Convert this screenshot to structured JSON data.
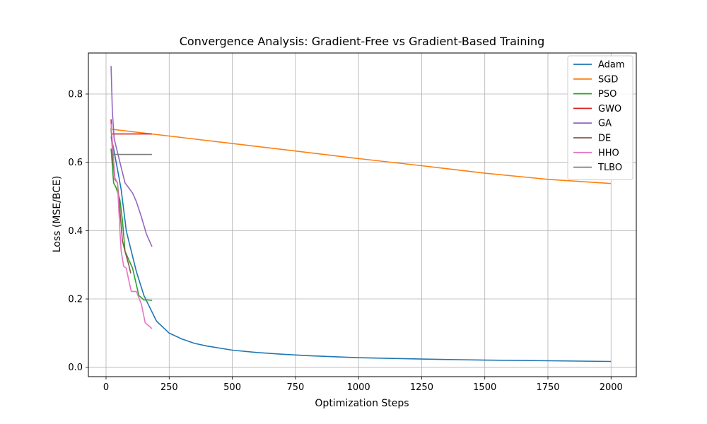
{
  "chart_data": {
    "type": "line",
    "title": "Convergence Analysis: Gradient-Free vs Gradient-Based Training",
    "xlabel": "Optimization Steps",
    "ylabel": "Loss (MSE/BCE)",
    "xlim": [
      -70,
      2100
    ],
    "ylim": [
      -0.0275,
      0.92
    ],
    "xticks": [
      0,
      250,
      500,
      750,
      1000,
      1250,
      1500,
      1750,
      2000
    ],
    "yticks": [
      0.0,
      0.2,
      0.4,
      0.6,
      0.8
    ],
    "xtick_labels": [
      "0",
      "250",
      "500",
      "750",
      "1000",
      "1250",
      "1500",
      "1750",
      "2000"
    ],
    "ytick_labels": [
      "0.0",
      "0.2",
      "0.4",
      "0.6",
      "0.8"
    ],
    "grid": true,
    "legend_position": "top-right",
    "series": [
      {
        "name": "Adam",
        "color": "#1f77b4",
        "points": [
          [
            20,
            0.675
          ],
          [
            30,
            0.64
          ],
          [
            40,
            0.6
          ],
          [
            50,
            0.56
          ],
          [
            60,
            0.52
          ],
          [
            70,
            0.46
          ],
          [
            80,
            0.4
          ],
          [
            100,
            0.34
          ],
          [
            120,
            0.28
          ],
          [
            150,
            0.21
          ],
          [
            200,
            0.135
          ],
          [
            250,
            0.1
          ],
          [
            300,
            0.083
          ],
          [
            350,
            0.07
          ],
          [
            400,
            0.062
          ],
          [
            500,
            0.05
          ],
          [
            600,
            0.043
          ],
          [
            700,
            0.038
          ],
          [
            800,
            0.034
          ],
          [
            1000,
            0.028
          ],
          [
            1250,
            0.024
          ],
          [
            1500,
            0.021
          ],
          [
            1750,
            0.019
          ],
          [
            2000,
            0.017
          ]
        ]
      },
      {
        "name": "SGD",
        "color": "#ff7f0e",
        "points": [
          [
            20,
            0.697
          ],
          [
            250,
            0.677
          ],
          [
            500,
            0.655
          ],
          [
            750,
            0.633
          ],
          [
            1000,
            0.611
          ],
          [
            1250,
            0.59
          ],
          [
            1500,
            0.568
          ],
          [
            1750,
            0.55
          ],
          [
            2000,
            0.538
          ]
        ]
      },
      {
        "name": "PSO",
        "color": "#2ca02c",
        "points": [
          [
            20,
            0.64
          ],
          [
            30,
            0.54
          ],
          [
            40,
            0.525
          ],
          [
            55,
            0.49
          ],
          [
            65,
            0.43
          ],
          [
            75,
            0.34
          ],
          [
            90,
            0.315
          ],
          [
            105,
            0.29
          ],
          [
            130,
            0.21
          ],
          [
            150,
            0.197
          ],
          [
            165,
            0.197
          ],
          [
            182,
            0.196
          ]
        ]
      },
      {
        "name": "GWO",
        "color": "#d62728",
        "points": [
          [
            20,
            0.726
          ],
          [
            22,
            0.683
          ],
          [
            100,
            0.683
          ],
          [
            182,
            0.683
          ]
        ]
      },
      {
        "name": "GA",
        "color": "#9467bd",
        "points": [
          [
            20,
            0.882
          ],
          [
            25,
            0.75
          ],
          [
            32,
            0.67
          ],
          [
            45,
            0.63
          ],
          [
            60,
            0.585
          ],
          [
            75,
            0.54
          ],
          [
            90,
            0.525
          ],
          [
            105,
            0.51
          ],
          [
            120,
            0.485
          ],
          [
            140,
            0.44
          ],
          [
            160,
            0.39
          ],
          [
            182,
            0.353
          ]
        ]
      },
      {
        "name": "DE",
        "color": "#8c564b",
        "points": [
          [
            20,
            0.7
          ],
          [
            28,
            0.6
          ],
          [
            35,
            0.55
          ],
          [
            45,
            0.54
          ],
          [
            55,
            0.46
          ],
          [
            65,
            0.37
          ],
          [
            75,
            0.34
          ],
          [
            90,
            0.3
          ],
          [
            98,
            0.275
          ]
        ]
      },
      {
        "name": "HHO",
        "color": "#e377c2",
        "points": [
          [
            20,
            0.713
          ],
          [
            28,
            0.63
          ],
          [
            35,
            0.555
          ],
          [
            45,
            0.54
          ],
          [
            55,
            0.4
          ],
          [
            60,
            0.34
          ],
          [
            70,
            0.295
          ],
          [
            80,
            0.29
          ],
          [
            90,
            0.255
          ],
          [
            100,
            0.222
          ],
          [
            120,
            0.222
          ],
          [
            140,
            0.185
          ],
          [
            155,
            0.13
          ],
          [
            170,
            0.121
          ],
          [
            182,
            0.113
          ]
        ]
      },
      {
        "name": "TLBO",
        "color": "#7f7f7f",
        "points": [
          [
            20,
            0.623
          ],
          [
            100,
            0.623
          ],
          [
            182,
            0.623
          ]
        ]
      }
    ]
  }
}
